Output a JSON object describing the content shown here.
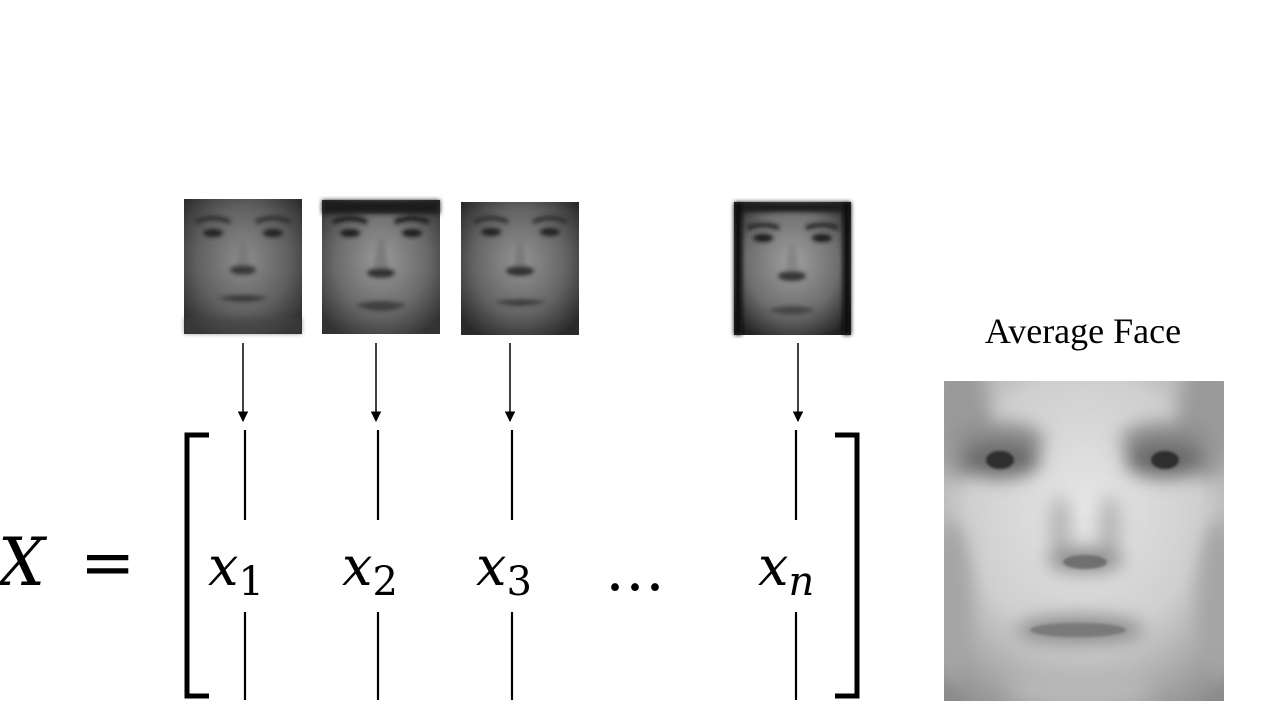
{
  "average_face": {
    "title": "Average Face"
  },
  "matrix": {
    "symbol": "X",
    "equals": "=",
    "ellipsis": "…",
    "columns": [
      {
        "var": "x",
        "sub": "1"
      },
      {
        "var": "x",
        "sub": "2"
      },
      {
        "var": "x",
        "sub": "3"
      },
      {
        "var": "x",
        "sub": "n"
      }
    ]
  },
  "faces": [
    {
      "name": "face-1"
    },
    {
      "name": "face-2"
    },
    {
      "name": "face-3"
    },
    {
      "name": "face-n"
    }
  ],
  "colors": {
    "ink": "#000000",
    "background": "#ffffff"
  }
}
